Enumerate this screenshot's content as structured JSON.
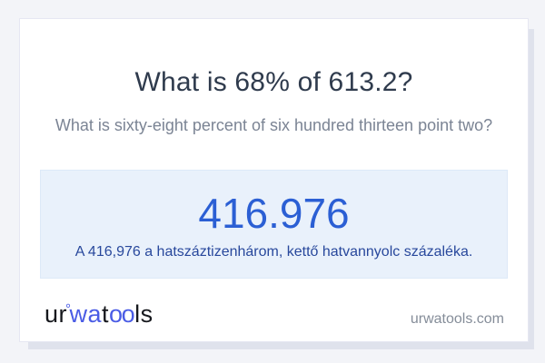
{
  "page": {
    "background_color": "#f3f4f8",
    "card_background": "#ffffff"
  },
  "card": {
    "title": "What is 68% of 613.2?",
    "subtitle": "What is sixty-eight percent of six hundred thirteen point two?"
  },
  "result": {
    "value": "416.976",
    "description": "A 416,976 a hatszáztizenhárom, kettő hatvannyolc százaléka.",
    "value_color": "#2b5fd4",
    "description_color": "#28489c",
    "box_background": "#e9f1fb"
  },
  "footer": {
    "logo_segments": [
      {
        "text": "ur",
        "color": "#16181d"
      },
      {
        "text": "°",
        "color": "#4a5ce5"
      },
      {
        "text": "wa",
        "color": "#4a5ce5"
      },
      {
        "text": "t",
        "color": "#16181d"
      },
      {
        "text": "oo",
        "color": "#4a5ce5"
      },
      {
        "text": "ls",
        "color": "#16181d"
      }
    ],
    "logo_brand_blue": "#4a5ce5",
    "domain": "urwatools.com"
  }
}
